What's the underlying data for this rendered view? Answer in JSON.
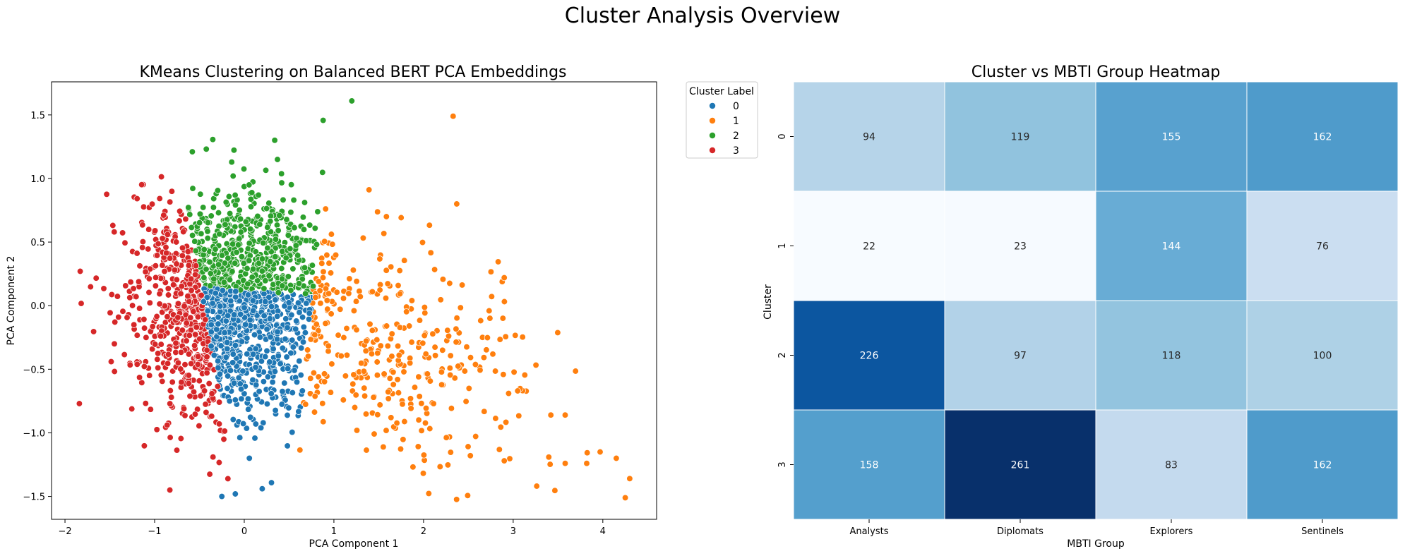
{
  "suptitle": "Cluster Analysis Overview",
  "chart_data": [
    {
      "type": "scatter",
      "title": "KMeans Clustering on Balanced BERT PCA Embeddings",
      "xlabel": "PCA Component 1",
      "ylabel": "PCA Component 2",
      "xlim": [
        -2.15,
        4.6
      ],
      "ylim": [
        -1.68,
        1.76
      ],
      "xticks": [
        "−2",
        "−1",
        "0",
        "1",
        "2",
        "3",
        "4"
      ],
      "yticks": [
        "−1.5",
        "−1.0",
        "−0.5",
        "0.0",
        "0.5",
        "1.0",
        "1.5"
      ],
      "grid": false,
      "legend": {
        "title": "Cluster Label",
        "placement": "outside-top-right",
        "entries": [
          "0",
          "1",
          "2",
          "3"
        ]
      },
      "series": [
        {
          "name": "0",
          "color": "#1f77b4",
          "approx_center": [
            0.1,
            -0.35
          ],
          "approx_count": 500
        },
        {
          "name": "1",
          "color": "#ff7f0e",
          "approx_center": [
            1.3,
            -0.25
          ],
          "approx_count": 350
        },
        {
          "name": "2",
          "color": "#2ca02c",
          "approx_center": [
            0.35,
            0.55
          ],
          "approx_count": 520
        },
        {
          "name": "3",
          "color": "#d62728",
          "approx_center": [
            -0.85,
            -0.15
          ],
          "approx_count": 580
        }
      ],
      "highlighted_points": [
        {
          "x": 2.33,
          "y": 1.49,
          "series": "1"
        },
        {
          "x": 1.2,
          "y": 1.61,
          "series": "2"
        },
        {
          "x": 4.3,
          "y": -1.36,
          "series": "1"
        },
        {
          "x": 4.25,
          "y": -1.51,
          "series": "1"
        },
        {
          "x": 4.15,
          "y": -1.2,
          "series": "1"
        },
        {
          "x": 3.97,
          "y": -1.15,
          "series": "1"
        },
        {
          "x": 3.58,
          "y": -1.24,
          "series": "1"
        },
        {
          "x": 3.82,
          "y": -1.24,
          "series": "1"
        },
        {
          "x": 3.42,
          "y": -0.86,
          "series": "1"
        },
        {
          "x": 3.58,
          "y": -0.86,
          "series": "1"
        },
        {
          "x": 3.05,
          "y": -0.67,
          "series": "1"
        },
        {
          "x": 2.9,
          "y": -1.22,
          "series": "1"
        },
        {
          "x": 2.9,
          "y": 0.22,
          "series": "1"
        },
        {
          "x": 2.37,
          "y": 0.8,
          "series": "1"
        },
        {
          "x": -1.83,
          "y": 0.27,
          "series": "3"
        },
        {
          "x": -1.84,
          "y": -0.77,
          "series": "3"
        },
        {
          "x": -0.83,
          "y": -1.45,
          "series": "3"
        },
        {
          "x": -0.25,
          "y": -1.5,
          "series": "0"
        },
        {
          "x": -0.1,
          "y": -1.48,
          "series": "0"
        },
        {
          "x": 0.2,
          "y": -1.44,
          "series": "0"
        }
      ]
    },
    {
      "type": "heatmap",
      "title": "Cluster vs MBTI Group Heatmap",
      "xlabel": "MBTI Group",
      "ylabel": "Cluster",
      "x_categories": [
        "Analysts",
        "Diplomats",
        "Explorers",
        "Sentinels"
      ],
      "y_categories": [
        "0",
        "1",
        "2",
        "3"
      ],
      "values": [
        [
          94,
          119,
          155,
          162
        ],
        [
          22,
          23,
          144,
          76
        ],
        [
          226,
          97,
          118,
          100
        ],
        [
          158,
          261,
          83,
          162
        ]
      ],
      "colormap": "Blues",
      "vmin": 22,
      "vmax": 261,
      "colorbar": false
    }
  ]
}
